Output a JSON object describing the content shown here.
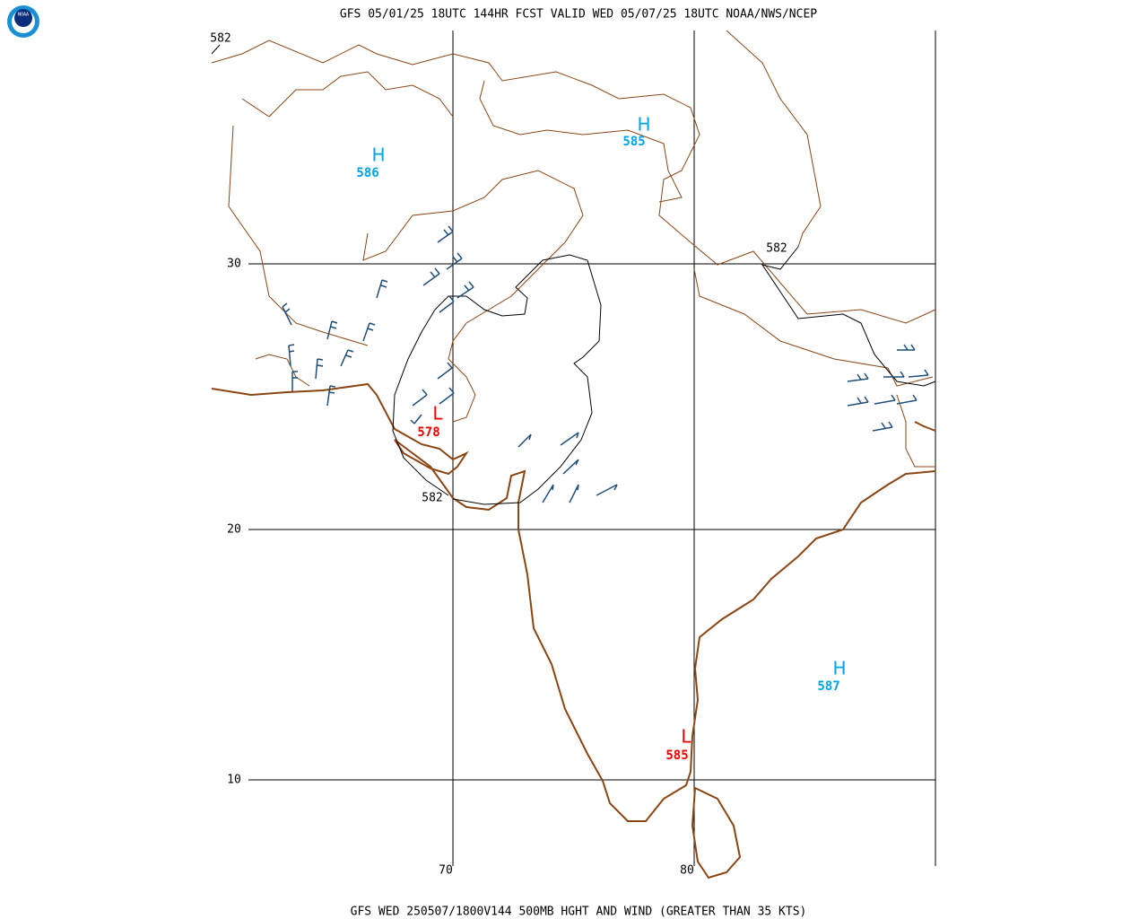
{
  "header": {
    "logo": "NOAA",
    "title": "GFS 05/01/25 18UTC 144HR FCST VALID WED 05/07/25 18UTC NOAA/NWS/NCEP"
  },
  "footer": "GFS WED 250507/1800V144 500MB HGHT AND WIND (GREATER THAN 35 KTS)",
  "grid": {
    "latitudes": [
      30,
      20,
      10
    ],
    "longitudes": [
      70,
      80
    ]
  },
  "contours": [
    {
      "label": "582"
    },
    {
      "label": "582"
    },
    {
      "label": "582"
    }
  ],
  "centers": [
    {
      "symbol": "H",
      "value": 586
    },
    {
      "symbol": "H",
      "value": 585
    },
    {
      "symbol": "H",
      "value": 587
    },
    {
      "symbol": "L",
      "value": 578
    },
    {
      "symbol": "L",
      "value": 585
    }
  ]
}
